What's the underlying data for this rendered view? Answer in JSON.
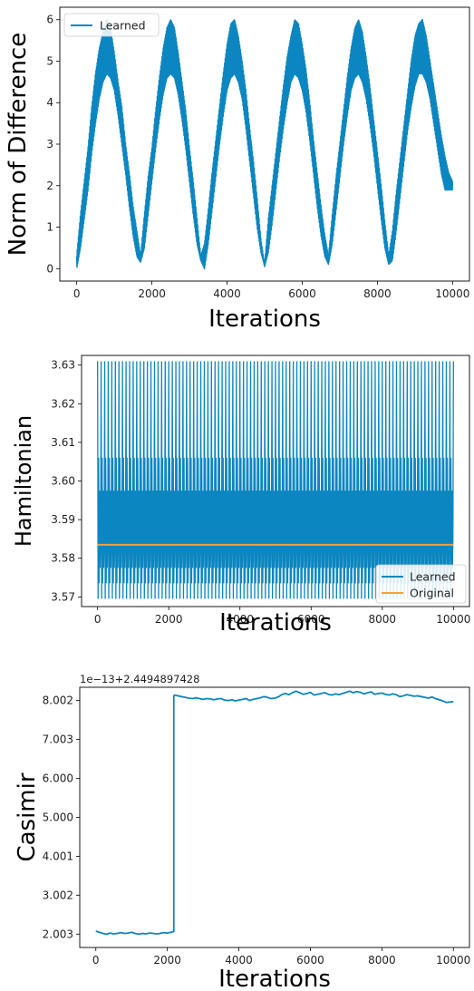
{
  "chart_data": [
    {
      "type": "line",
      "xlabel": "Iterations",
      "ylabel": "Norm of Difference",
      "xlim": [
        -450,
        10450
      ],
      "ylim": [
        -0.3,
        6.3
      ],
      "xticks": [
        0,
        2000,
        4000,
        6000,
        8000,
        10000
      ],
      "yticks": [
        0,
        1,
        2,
        3,
        4,
        5,
        6
      ],
      "legend": "top-left",
      "grid": false,
      "series": [
        {
          "name": "Learned",
          "color": "#0c86c0",
          "x": [
            0,
            100,
            200,
            300,
            400,
            500,
            600,
            700,
            800,
            900,
            1000,
            1100,
            1200,
            1300,
            1400,
            1500,
            1600,
            1700,
            1800,
            1900,
            2000,
            2100,
            2200,
            2300,
            2400,
            2500,
            2600,
            2700,
            2800,
            2900,
            3000,
            3100,
            3200,
            3300,
            3400,
            3500,
            3600,
            3700,
            3800,
            3900,
            4000,
            4100,
            4200,
            4300,
            4400,
            4500,
            4600,
            4700,
            4800,
            4900,
            5000,
            5100,
            5200,
            5300,
            5400,
            5500,
            5600,
            5700,
            5800,
            5900,
            6000,
            6100,
            6200,
            6300,
            6400,
            6500,
            6600,
            6700,
            6800,
            6900,
            7000,
            7100,
            7200,
            7300,
            7400,
            7500,
            7600,
            7700,
            7800,
            7900,
            8000,
            8100,
            8200,
            8300,
            8400,
            8500,
            8600,
            8700,
            8800,
            8900,
            9000,
            9100,
            9200,
            9300,
            9400,
            9500,
            9600,
            9700,
            9800,
            9900,
            10000
          ],
          "low": [
            0.0,
            0.5,
            1.2,
            1.9,
            2.8,
            3.5,
            4.1,
            4.5,
            4.7,
            4.6,
            4.3,
            3.7,
            3.0,
            2.3,
            1.5,
            0.8,
            0.3,
            0.15,
            0.5,
            1.3,
            2.1,
            2.9,
            3.6,
            4.2,
            4.6,
            4.7,
            4.6,
            4.2,
            3.6,
            2.9,
            2.1,
            1.3,
            0.6,
            0.2,
            0.0,
            0.6,
            1.4,
            2.2,
            3.0,
            3.7,
            4.3,
            4.6,
            4.7,
            4.5,
            4.1,
            3.4,
            2.6,
            1.8,
            1.0,
            0.4,
            0.05,
            0.4,
            1.1,
            1.9,
            2.7,
            3.4,
            4.0,
            4.5,
            4.7,
            4.6,
            4.3,
            3.8,
            3.1,
            2.3,
            1.5,
            0.8,
            0.3,
            0.1,
            0.6,
            1.4,
            2.2,
            3.0,
            3.7,
            4.3,
            4.6,
            4.7,
            4.5,
            4.1,
            3.5,
            2.8,
            2.0,
            1.2,
            0.5,
            0.1,
            0.2,
            0.9,
            1.7,
            2.5,
            3.3,
            3.9,
            4.4,
            4.7,
            4.7,
            4.5,
            4.1,
            3.5,
            2.9,
            2.3,
            1.9,
            1.9,
            1.9
          ],
          "high": [
            0.3,
            1.3,
            2.1,
            2.9,
            3.9,
            4.7,
            5.3,
            5.7,
            6.0,
            5.8,
            5.2,
            4.5,
            3.9,
            3.0,
            2.3,
            1.5,
            0.9,
            0.3,
            1.3,
            2.2,
            2.9,
            3.8,
            4.6,
            5.3,
            5.8,
            6.0,
            5.8,
            5.2,
            4.5,
            3.8,
            2.9,
            2.1,
            1.2,
            0.3,
            0.6,
            1.4,
            2.3,
            3.1,
            3.9,
            4.7,
            5.4,
            5.9,
            6.0,
            5.6,
            5.0,
            4.3,
            3.4,
            2.6,
            1.7,
            0.7,
            0.1,
            1.2,
            2.0,
            2.8,
            3.6,
            4.4,
            5.1,
            5.6,
            6.0,
            5.9,
            5.4,
            4.8,
            4.0,
            3.1,
            2.3,
            1.5,
            0.8,
            0.3,
            1.3,
            2.2,
            3.0,
            3.8,
            4.6,
            5.3,
            5.8,
            6.0,
            5.7,
            5.1,
            4.4,
            3.6,
            2.8,
            2.0,
            1.1,
            0.3,
            0.9,
            1.8,
            2.6,
            3.4,
            4.2,
            5.0,
            5.6,
            5.9,
            6.0,
            5.6,
            5.0,
            4.4,
            3.8,
            3.2,
            2.7,
            2.3,
            2.1
          ]
        }
      ]
    },
    {
      "type": "line",
      "xlabel": "Iterations",
      "ylabel": "Hamiltonian",
      "xlim": [
        -450,
        10450
      ],
      "ylim": [
        3.5675,
        3.6325
      ],
      "xticks": [
        0,
        2000,
        4000,
        6000,
        8000,
        10000
      ],
      "yticks": [
        3.57,
        3.58,
        3.59,
        3.6,
        3.61,
        3.62,
        3.63
      ],
      "legend": "bottom-right",
      "grid": false,
      "oscillation": {
        "min": 3.5695,
        "max": 3.631,
        "cycles": 100,
        "levels": [
          3.5695,
          3.5735,
          3.5775,
          3.586,
          3.5975,
          3.606,
          3.631
        ]
      },
      "series": [
        {
          "name": "Learned",
          "color": "#0c86c0",
          "x": [
            0,
            10000
          ],
          "y": [
            3.5835,
            3.5835
          ]
        },
        {
          "name": "Original",
          "color": "#f5a03a",
          "x": [
            0,
            10000
          ],
          "y": [
            3.5835,
            3.5835
          ]
        }
      ]
    },
    {
      "type": "line",
      "xlabel": "Iterations",
      "ylabel": "Casimir",
      "offset_text": "1e−13+2.4494897428",
      "xlim": [
        -450,
        10450
      ],
      "ylim": [
        1.66,
        8.34
      ],
      "xticks": [
        0,
        2000,
        4000,
        6000,
        8000,
        10000
      ],
      "yticks": [
        2.003,
        3.002,
        4.001,
        5.0,
        6.0,
        7.003,
        8.002
      ],
      "ytick_labels": [
        "2.003",
        "3.002",
        "4.001",
        "5.000",
        "6.000",
        "7.003",
        "8.002"
      ],
      "legend": "none",
      "grid": false,
      "series": [
        {
          "color": "#0c86c0",
          "x": [
            0,
            100,
            200,
            300,
            400,
            500,
            600,
            700,
            800,
            900,
            1000,
            1100,
            1200,
            1300,
            1400,
            1500,
            1600,
            1700,
            1800,
            1900,
            2000,
            2100,
            2180,
            2180,
            2200,
            2300,
            2400,
            2500,
            2600,
            2700,
            2800,
            2900,
            3000,
            3100,
            3200,
            3300,
            3400,
            3500,
            3600,
            3700,
            3800,
            3900,
            4000,
            4100,
            4200,
            4300,
            4400,
            4500,
            4600,
            4700,
            4800,
            4900,
            5000,
            5100,
            5200,
            5300,
            5400,
            5500,
            5600,
            5700,
            5800,
            5900,
            6000,
            6100,
            6200,
            6300,
            6400,
            6500,
            6600,
            6700,
            6800,
            6900,
            7000,
            7100,
            7200,
            7300,
            7400,
            7500,
            7600,
            7700,
            7800,
            7900,
            8000,
            8100,
            8200,
            8300,
            8400,
            8500,
            8600,
            8700,
            8800,
            8900,
            9000,
            9100,
            9200,
            9300,
            9400,
            9500,
            9600,
            9700,
            9800,
            9900,
            10000
          ],
          "y": [
            2.08,
            2.05,
            2.02,
            2.0,
            2.03,
            2.01,
            2.02,
            2.04,
            2.02,
            2.03,
            2.05,
            2.02,
            2.0,
            2.02,
            2.01,
            2.03,
            2.02,
            2.01,
            2.02,
            2.04,
            2.03,
            2.05,
            2.07,
            8.12,
            8.14,
            8.12,
            8.1,
            8.08,
            8.06,
            8.05,
            8.07,
            8.05,
            8.03,
            8.05,
            8.04,
            8.02,
            8.04,
            8.05,
            8.01,
            8.0,
            8.02,
            7.99,
            8.01,
            8.03,
            8.05,
            8.0,
            8.03,
            8.05,
            8.07,
            8.1,
            8.08,
            8.05,
            8.06,
            8.09,
            8.15,
            8.18,
            8.15,
            8.2,
            8.24,
            8.2,
            8.16,
            8.18,
            8.21,
            8.14,
            8.16,
            8.18,
            8.2,
            8.16,
            8.14,
            8.17,
            8.15,
            8.18,
            8.21,
            8.24,
            8.2,
            8.23,
            8.21,
            8.17,
            8.2,
            8.22,
            8.16,
            8.18,
            8.19,
            8.16,
            8.14,
            8.17,
            8.15,
            8.1,
            8.12,
            8.15,
            8.13,
            8.11,
            8.12,
            8.1,
            8.08,
            8.06,
            8.09,
            8.05,
            8.02,
            7.99,
            7.95,
            7.96,
            7.97
          ]
        }
      ]
    }
  ]
}
